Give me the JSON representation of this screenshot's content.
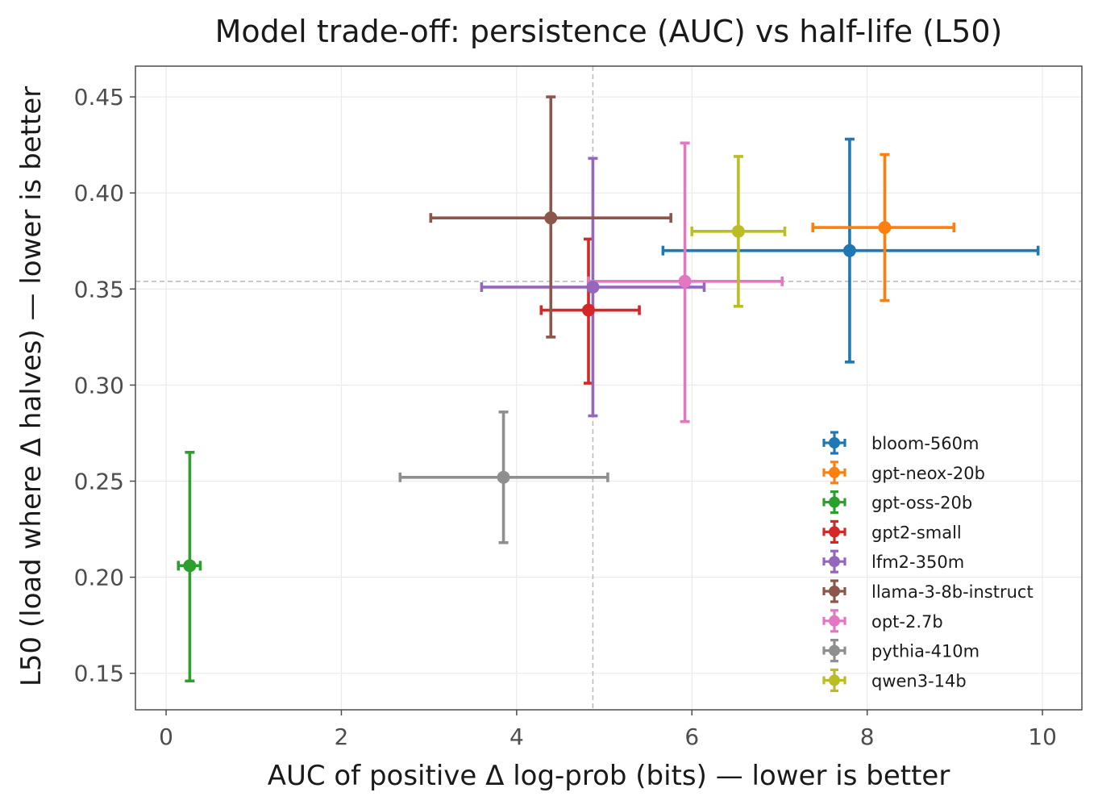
{
  "chart_data": {
    "type": "scatter",
    "title": "Model trade-off: persistence (AUC) vs half-life (L50)",
    "xlabel": "AUC of positive Δ log-prob (bits) — lower is better",
    "ylabel": "L50 (load where Δ halves) — lower is better",
    "xlim": [
      -0.35,
      10.45
    ],
    "ylim": [
      0.131,
      0.466
    ],
    "xticks": [
      0,
      2,
      4,
      6,
      8,
      10
    ],
    "xtick_labels": [
      "0",
      "2",
      "4",
      "6",
      "8",
      "10"
    ],
    "yticks": [
      0.15,
      0.2,
      0.25,
      0.3,
      0.35,
      0.4,
      0.45
    ],
    "ytick_labels": [
      "0.15",
      "0.20",
      "0.25",
      "0.30",
      "0.35",
      "0.40",
      "0.45"
    ],
    "grid": true,
    "reference_lines": {
      "x": 4.87,
      "y": 0.354
    },
    "legend_position": "lower-right",
    "series": [
      {
        "name": "bloom-560m",
        "color": "#1f77b4",
        "x": 7.8,
        "y": 0.37,
        "x_err": [
          5.67,
          9.95
        ],
        "y_err": [
          0.312,
          0.428
        ]
      },
      {
        "name": "gpt-neox-20b",
        "color": "#ff7f0e",
        "x": 8.2,
        "y": 0.382,
        "x_err": [
          7.38,
          8.99
        ],
        "y_err": [
          0.344,
          0.42
        ]
      },
      {
        "name": "gpt-oss-20b",
        "color": "#2ca02c",
        "x": 0.27,
        "y": 0.206,
        "x_err": [
          0.14,
          0.39
        ],
        "y_err": [
          0.146,
          0.265
        ]
      },
      {
        "name": "gpt2-small",
        "color": "#d62728",
        "x": 4.82,
        "y": 0.339,
        "x_err": [
          4.28,
          5.4
        ],
        "y_err": [
          0.301,
          0.376
        ]
      },
      {
        "name": "lfm2-350m",
        "color": "#9467bd",
        "x": 4.87,
        "y": 0.351,
        "x_err": [
          3.6,
          6.14
        ],
        "y_err": [
          0.284,
          0.418
        ]
      },
      {
        "name": "llama-3-8b-instruct",
        "color": "#8c564b",
        "x": 4.39,
        "y": 0.387,
        "x_err": [
          3.02,
          5.76
        ],
        "y_err": [
          0.325,
          0.45
        ]
      },
      {
        "name": "opt-2.7b",
        "color": "#e377c2",
        "x": 5.92,
        "y": 0.354,
        "x_err": [
          4.82,
          7.03
        ],
        "y_err": [
          0.281,
          0.426
        ]
      },
      {
        "name": "pythia-410m",
        "color": "#8f8f8f",
        "x": 3.85,
        "y": 0.252,
        "x_err": [
          2.67,
          5.04
        ],
        "y_err": [
          0.218,
          0.286
        ]
      },
      {
        "name": "qwen3-14b",
        "color": "#bcbd22",
        "x": 6.53,
        "y": 0.38,
        "x_err": [
          6.0,
          7.06
        ],
        "y_err": [
          0.341,
          0.419
        ]
      }
    ]
  }
}
